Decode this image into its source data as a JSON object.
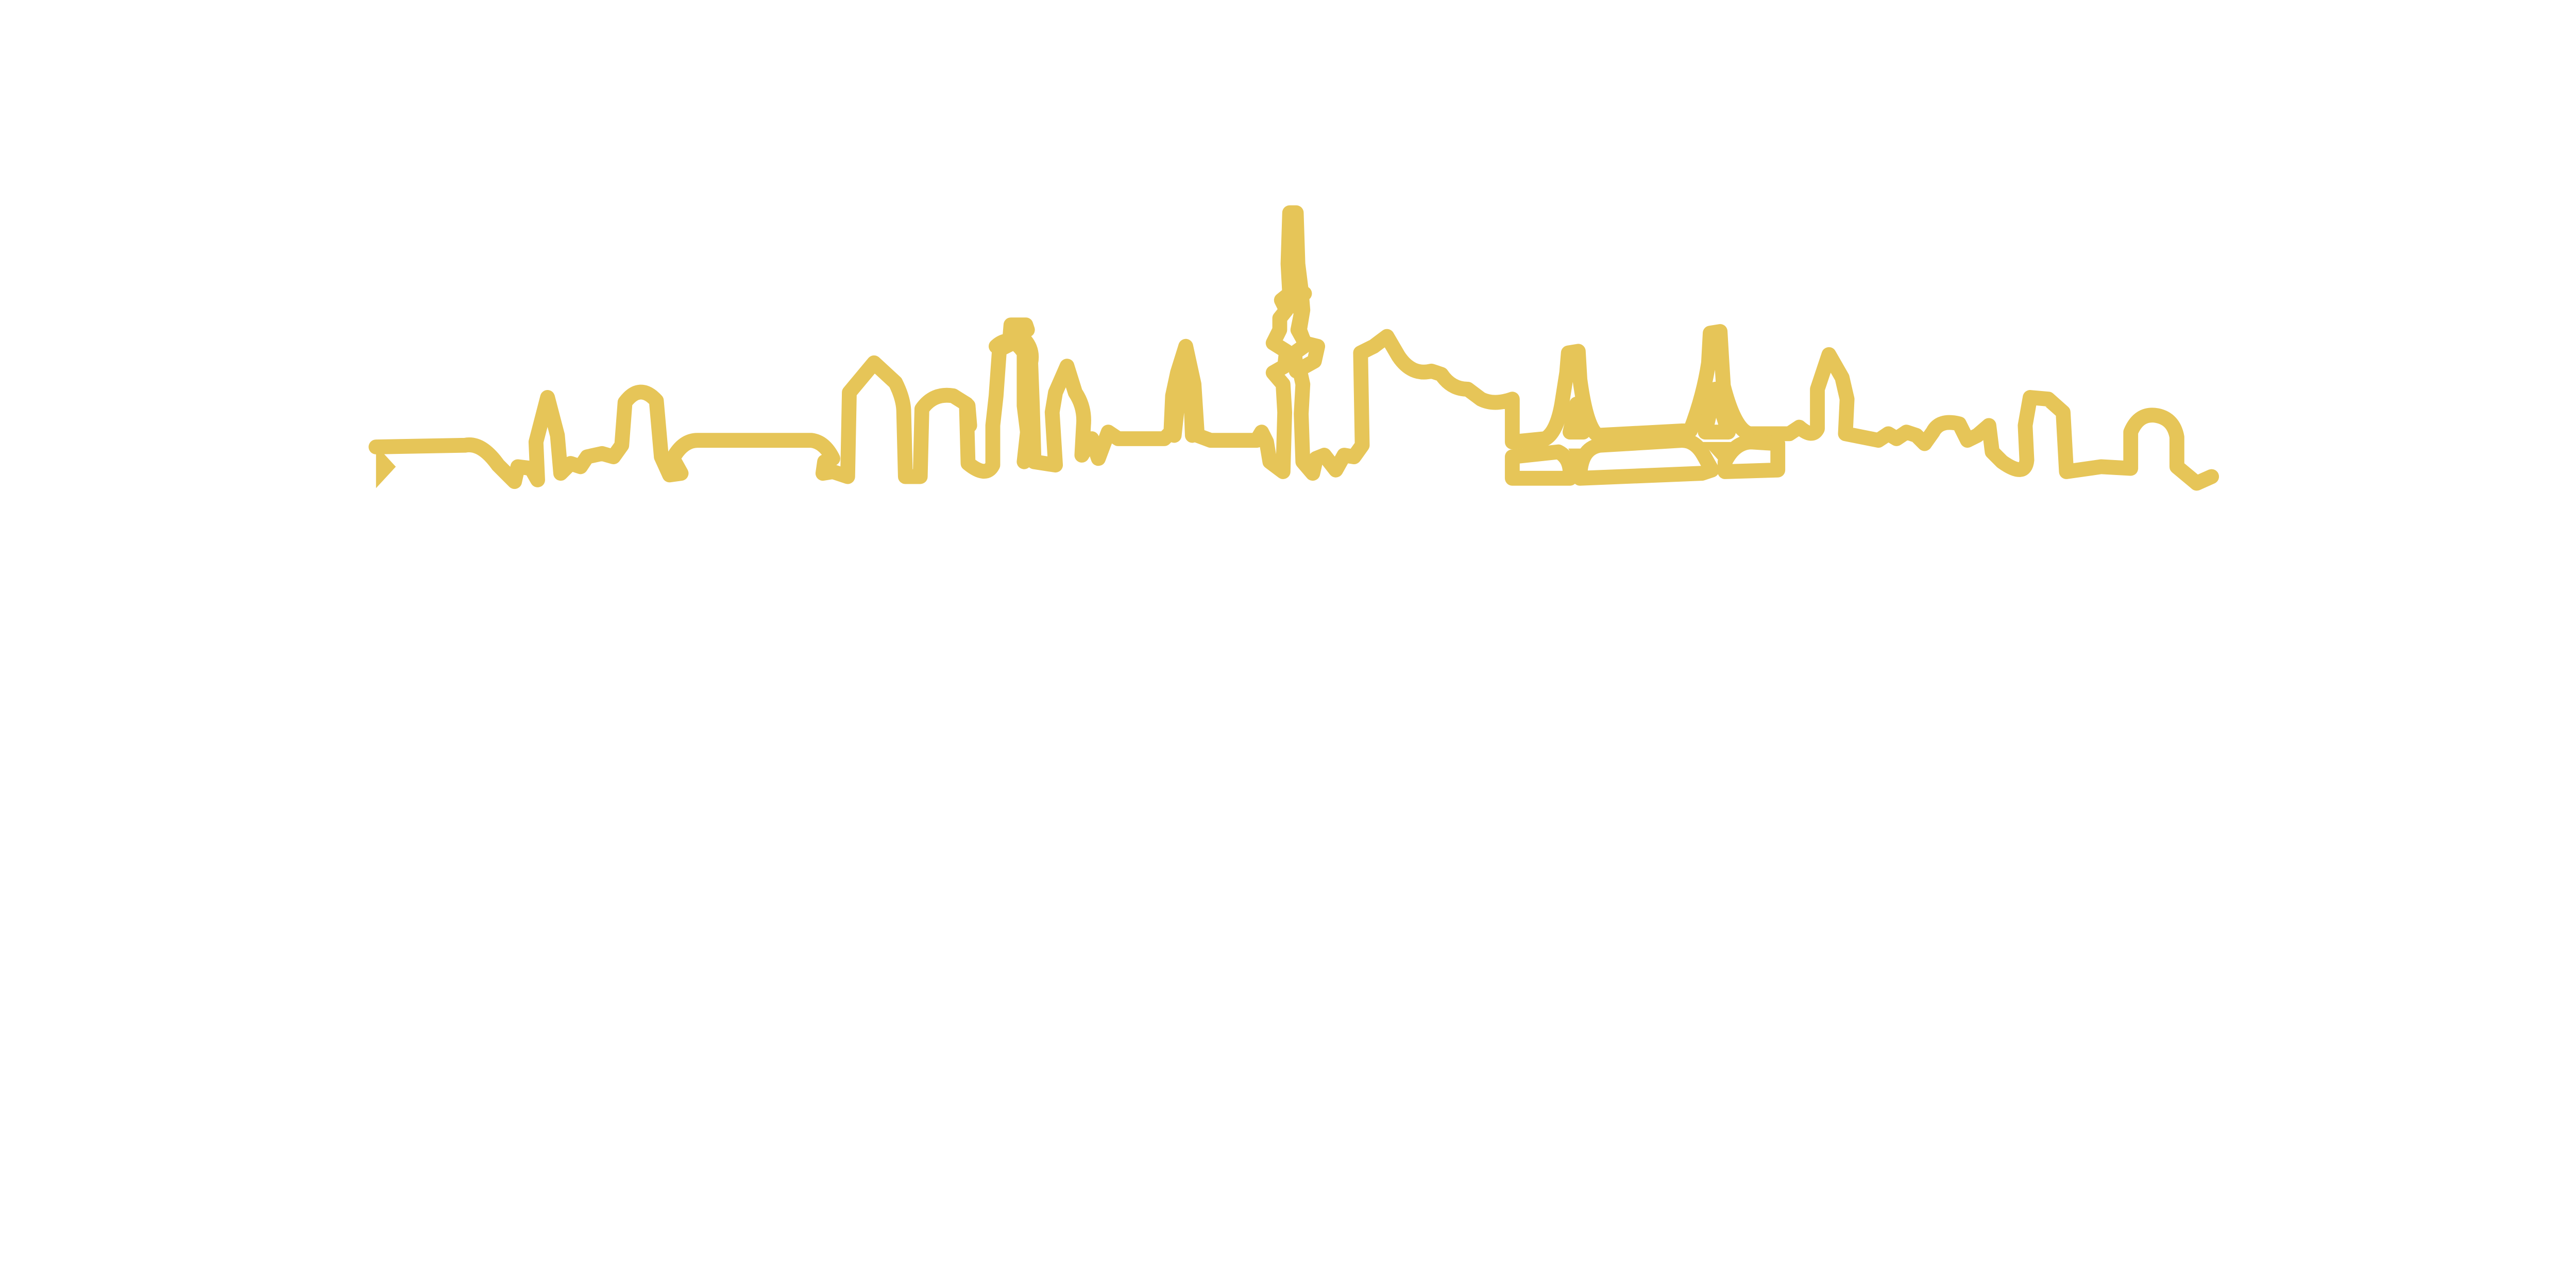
{
  "illustration": {
    "subject": "city-skyline-line-drawing",
    "colors": {
      "background": "#ffffff",
      "stroke": "#e6c558"
    }
  }
}
